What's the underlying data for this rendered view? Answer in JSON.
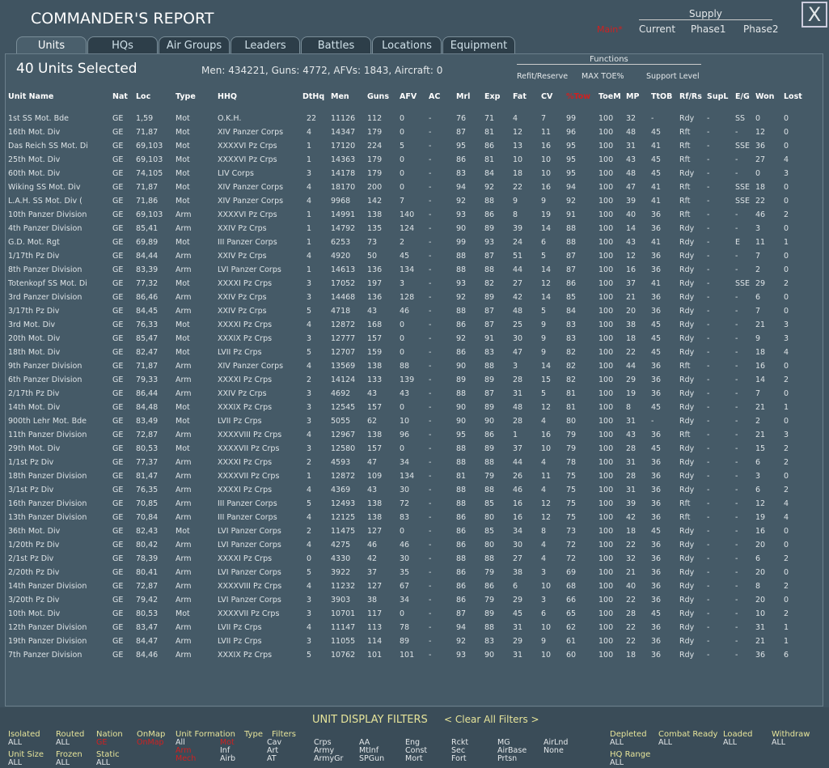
{
  "header": {
    "title": "COMMANDER'S REPORT",
    "close": "X"
  },
  "supply": {
    "label": "Supply",
    "current_mode": "Main*",
    "options": [
      "Current",
      "Phase1",
      "Phase2"
    ]
  },
  "tabs": [
    "Units",
    "HQs",
    "Air Groups",
    "Leaders",
    "Battles",
    "Locations",
    "Equipment"
  ],
  "summary": {
    "selected": "40 Units Selected",
    "totals": "Men: 434221, Guns: 4772, AFVs: 1843, Aircraft: 0"
  },
  "functions": {
    "label": "Functions",
    "items": [
      "Refit/Reserve",
      "MAX TOE%",
      "Support Level"
    ]
  },
  "table": {
    "columns": [
      "Unit Name",
      "Nat",
      "Loc",
      "Type",
      "HHQ",
      "DtHq",
      "Men",
      "Guns",
      "AFV",
      "AC",
      "Mrl",
      "Exp",
      "Fat",
      "CV",
      "%Tow",
      "ToeM",
      "MP",
      "TtOB",
      "Rf/Rs",
      "SupL",
      "E/G",
      "Won",
      "Lost"
    ],
    "rows": [
      [
        "1st SS Mot. Bde",
        "GE",
        "1,59",
        "Mot",
        "O.K.H.",
        "22",
        "11126",
        "112",
        "0",
        "-",
        "76",
        "71",
        "4",
        "7",
        "99",
        "100",
        "32",
        "-",
        "Rdy",
        "-",
        "SS",
        "0",
        "0"
      ],
      [
        "16th Mot. Div",
        "GE",
        "71,87",
        "Mot",
        "XIV Panzer Corps",
        "4",
        "14347",
        "179",
        "0",
        "-",
        "87",
        "81",
        "12",
        "11",
        "96",
        "100",
        "48",
        "45",
        "Rft",
        "-",
        "-",
        "12",
        "0"
      ],
      [
        "Das Reich SS Mot. Di",
        "GE",
        "69,103",
        "Mot",
        "XXXXVI Pz Crps",
        "1",
        "17120",
        "224",
        "5",
        "-",
        "95",
        "86",
        "13",
        "16",
        "95",
        "100",
        "31",
        "41",
        "Rft",
        "-",
        "SSE",
        "36",
        "0"
      ],
      [
        "25th Mot. Div",
        "GE",
        "69,103",
        "Mot",
        "XXXXVI Pz Crps",
        "1",
        "14363",
        "179",
        "0",
        "-",
        "86",
        "81",
        "10",
        "10",
        "95",
        "100",
        "43",
        "45",
        "Rft",
        "-",
        "-",
        "27",
        "4"
      ],
      [
        "60th Mot. Div",
        "GE",
        "74,105",
        "Mot",
        "LIV Corps",
        "3",
        "14178",
        "179",
        "0",
        "-",
        "83",
        "84",
        "18",
        "10",
        "95",
        "100",
        "48",
        "45",
        "Rdy",
        "-",
        "-",
        "0",
        "3"
      ],
      [
        "Wiking SS Mot. Div",
        "GE",
        "71,87",
        "Mot",
        "XIV Panzer Corps",
        "4",
        "18170",
        "200",
        "0",
        "-",
        "94",
        "92",
        "22",
        "16",
        "94",
        "100",
        "47",
        "41",
        "Rft",
        "-",
        "SSE",
        "18",
        "0"
      ],
      [
        "L.A.H. SS Mot. Div (",
        "GE",
        "71,86",
        "Mot",
        "XIV Panzer Corps",
        "4",
        "9968",
        "142",
        "7",
        "-",
        "92",
        "88",
        "9",
        "9",
        "92",
        "100",
        "39",
        "41",
        "Rft",
        "-",
        "SSE",
        "22",
        "0"
      ],
      [
        "10th Panzer Division",
        "GE",
        "69,103",
        "Arm",
        "XXXXVI Pz Crps",
        "1",
        "14991",
        "138",
        "140",
        "-",
        "93",
        "86",
        "8",
        "19",
        "91",
        "100",
        "40",
        "36",
        "Rft",
        "-",
        "-",
        "46",
        "2"
      ],
      [
        "4th Panzer Division",
        "GE",
        "85,41",
        "Arm",
        "XXIV Pz Crps",
        "1",
        "14792",
        "135",
        "124",
        "-",
        "90",
        "89",
        "39",
        "14",
        "88",
        "100",
        "14",
        "36",
        "Rdy",
        "-",
        "-",
        "3",
        "0"
      ],
      [
        "G.D. Mot. Rgt",
        "GE",
        "69,89",
        "Mot",
        "III Panzer Corps",
        "1",
        "6253",
        "73",
        "2",
        "-",
        "99",
        "93",
        "24",
        "6",
        "88",
        "100",
        "43",
        "41",
        "Rdy",
        "-",
        "E",
        "11",
        "1"
      ],
      [
        "1/17th Pz Div",
        "GE",
        "84,44",
        "Arm",
        "XXIV Pz Crps",
        "4",
        "4920",
        "50",
        "45",
        "-",
        "88",
        "87",
        "51",
        "5",
        "87",
        "100",
        "12",
        "36",
        "Rdy",
        "-",
        "-",
        "7",
        "0"
      ],
      [
        "8th Panzer Division",
        "GE",
        "83,39",
        "Arm",
        "LVI Panzer Corps",
        "1",
        "14613",
        "136",
        "134",
        "-",
        "88",
        "88",
        "44",
        "14",
        "87",
        "100",
        "16",
        "36",
        "Rdy",
        "-",
        "-",
        "2",
        "0"
      ],
      [
        "Totenkopf SS Mot. Di",
        "GE",
        "77,32",
        "Mot",
        "XXXXI Pz Crps",
        "3",
        "17052",
        "197",
        "3",
        "-",
        "93",
        "82",
        "27",
        "12",
        "86",
        "100",
        "37",
        "41",
        "Rdy",
        "-",
        "SSE",
        "29",
        "2"
      ],
      [
        "3rd Panzer Division",
        "GE",
        "86,46",
        "Arm",
        "XXIV Pz Crps",
        "3",
        "14468",
        "136",
        "128",
        "-",
        "92",
        "89",
        "42",
        "14",
        "85",
        "100",
        "21",
        "36",
        "Rdy",
        "-",
        "-",
        "6",
        "0"
      ],
      [
        "3/17th Pz Div",
        "GE",
        "84,45",
        "Arm",
        "XXIV Pz Crps",
        "5",
        "4718",
        "43",
        "46",
        "-",
        "88",
        "87",
        "48",
        "5",
        "84",
        "100",
        "20",
        "36",
        "Rdy",
        "-",
        "-",
        "7",
        "0"
      ],
      [
        "3rd Mot. Div",
        "GE",
        "76,33",
        "Mot",
        "XXXXI Pz Crps",
        "4",
        "12872",
        "168",
        "0",
        "-",
        "86",
        "87",
        "25",
        "9",
        "83",
        "100",
        "38",
        "45",
        "Rdy",
        "-",
        "-",
        "21",
        "3"
      ],
      [
        "20th Mot. Div",
        "GE",
        "85,47",
        "Mot",
        "XXXIX Pz Crps",
        "3",
        "12777",
        "157",
        "0",
        "-",
        "92",
        "91",
        "30",
        "9",
        "83",
        "100",
        "18",
        "45",
        "Rdy",
        "-",
        "-",
        "9",
        "3"
      ],
      [
        "18th Mot. Div",
        "GE",
        "82,47",
        "Mot",
        "LVII Pz Crps",
        "5",
        "12707",
        "159",
        "0",
        "-",
        "86",
        "83",
        "47",
        "9",
        "82",
        "100",
        "22",
        "45",
        "Rdy",
        "-",
        "-",
        "18",
        "4"
      ],
      [
        "9th Panzer Division",
        "GE",
        "71,87",
        "Arm",
        "XIV Panzer Corps",
        "4",
        "13569",
        "138",
        "88",
        "-",
        "90",
        "88",
        "3",
        "14",
        "82",
        "100",
        "44",
        "36",
        "Rft",
        "-",
        "-",
        "16",
        "0"
      ],
      [
        "6th Panzer Division",
        "GE",
        "79,33",
        "Arm",
        "XXXXI Pz Crps",
        "2",
        "14124",
        "133",
        "139",
        "-",
        "89",
        "89",
        "28",
        "15",
        "82",
        "100",
        "29",
        "36",
        "Rdy",
        "-",
        "-",
        "14",
        "2"
      ],
      [
        "2/17th Pz Div",
        "GE",
        "86,44",
        "Arm",
        "XXIV Pz Crps",
        "3",
        "4692",
        "43",
        "43",
        "-",
        "88",
        "87",
        "31",
        "5",
        "81",
        "100",
        "19",
        "36",
        "Rdy",
        "-",
        "-",
        "7",
        "0"
      ],
      [
        "14th Mot. Div",
        "GE",
        "84,48",
        "Mot",
        "XXXIX Pz Crps",
        "3",
        "12545",
        "157",
        "0",
        "-",
        "90",
        "89",
        "48",
        "12",
        "81",
        "100",
        "8",
        "45",
        "Rdy",
        "-",
        "-",
        "21",
        "1"
      ],
      [
        "900th Lehr Mot. Bde",
        "GE",
        "83,49",
        "Mot",
        "LVII Pz Crps",
        "3",
        "5055",
        "62",
        "10",
        "-",
        "90",
        "90",
        "28",
        "4",
        "80",
        "100",
        "31",
        "-",
        "Rdy",
        "-",
        "-",
        "2",
        "0"
      ],
      [
        "11th Panzer Division",
        "GE",
        "72,87",
        "Arm",
        "XXXXVIII Pz Crps",
        "4",
        "12967",
        "138",
        "96",
        "-",
        "95",
        "86",
        "1",
        "16",
        "79",
        "100",
        "43",
        "36",
        "Rft",
        "-",
        "-",
        "21",
        "3"
      ],
      [
        "29th Mot. Div",
        "GE",
        "80,53",
        "Mot",
        "XXXXVII Pz Crps",
        "3",
        "12580",
        "157",
        "0",
        "-",
        "88",
        "89",
        "37",
        "10",
        "79",
        "100",
        "28",
        "45",
        "Rdy",
        "-",
        "-",
        "15",
        "2"
      ],
      [
        "1/1st Pz Div",
        "GE",
        "77,37",
        "Arm",
        "XXXXI Pz Crps",
        "2",
        "4593",
        "47",
        "34",
        "-",
        "88",
        "88",
        "44",
        "4",
        "78",
        "100",
        "31",
        "36",
        "Rdy",
        "-",
        "-",
        "6",
        "2"
      ],
      [
        "18th Panzer Division",
        "GE",
        "81,47",
        "Arm",
        "XXXXVII Pz Crps",
        "1",
        "12872",
        "109",
        "134",
        "-",
        "81",
        "79",
        "26",
        "11",
        "75",
        "100",
        "28",
        "36",
        "Rdy",
        "-",
        "-",
        "3",
        "0"
      ],
      [
        "3/1st Pz Div",
        "GE",
        "76,35",
        "Arm",
        "XXXXI Pz Crps",
        "4",
        "4369",
        "43",
        "30",
        "-",
        "88",
        "88",
        "46",
        "4",
        "75",
        "100",
        "31",
        "36",
        "Rdy",
        "-",
        "-",
        "6",
        "2"
      ],
      [
        "16th Panzer Division",
        "GE",
        "70,85",
        "Arm",
        "III Panzer Corps",
        "5",
        "12493",
        "138",
        "72",
        "-",
        "88",
        "85",
        "16",
        "12",
        "75",
        "100",
        "39",
        "36",
        "Rft",
        "-",
        "-",
        "12",
        "4"
      ],
      [
        "13th Panzer Division",
        "GE",
        "70,84",
        "Arm",
        "III Panzer Corps",
        "4",
        "12125",
        "138",
        "83",
        "-",
        "86",
        "80",
        "16",
        "12",
        "75",
        "100",
        "42",
        "36",
        "Rft",
        "-",
        "-",
        "19",
        "4"
      ],
      [
        "36th Mot. Div",
        "GE",
        "82,43",
        "Mot",
        "LVI Panzer Corps",
        "2",
        "11475",
        "127",
        "0",
        "-",
        "86",
        "85",
        "34",
        "8",
        "73",
        "100",
        "18",
        "45",
        "Rdy",
        "-",
        "-",
        "16",
        "0"
      ],
      [
        "1/20th Pz Div",
        "GE",
        "80,42",
        "Arm",
        "LVI Panzer Corps",
        "4",
        "4275",
        "46",
        "46",
        "-",
        "86",
        "80",
        "30",
        "4",
        "72",
        "100",
        "22",
        "36",
        "Rdy",
        "-",
        "-",
        "20",
        "0"
      ],
      [
        "2/1st Pz Div",
        "GE",
        "78,39",
        "Arm",
        "XXXXI Pz Crps",
        "0",
        "4330",
        "42",
        "30",
        "-",
        "88",
        "88",
        "27",
        "4",
        "72",
        "100",
        "32",
        "36",
        "Rdy",
        "-",
        "-",
        "6",
        "2"
      ],
      [
        "2/20th Pz Div",
        "GE",
        "80,41",
        "Arm",
        "LVI Panzer Corps",
        "5",
        "3922",
        "37",
        "35",
        "-",
        "86",
        "79",
        "38",
        "3",
        "69",
        "100",
        "21",
        "36",
        "Rdy",
        "-",
        "-",
        "20",
        "0"
      ],
      [
        "14th Panzer Division",
        "GE",
        "72,87",
        "Arm",
        "XXXXVIII Pz Crps",
        "4",
        "11232",
        "127",
        "67",
        "-",
        "86",
        "86",
        "6",
        "10",
        "68",
        "100",
        "40",
        "36",
        "Rdy",
        "-",
        "-",
        "8",
        "2"
      ],
      [
        "3/20th Pz Div",
        "GE",
        "79,42",
        "Arm",
        "LVI Panzer Corps",
        "3",
        "3903",
        "38",
        "34",
        "-",
        "86",
        "79",
        "29",
        "3",
        "66",
        "100",
        "22",
        "36",
        "Rdy",
        "-",
        "-",
        "20",
        "0"
      ],
      [
        "10th Mot. Div",
        "GE",
        "80,53",
        "Mot",
        "XXXXVII Pz Crps",
        "3",
        "10701",
        "117",
        "0",
        "-",
        "87",
        "89",
        "45",
        "6",
        "65",
        "100",
        "28",
        "45",
        "Rdy",
        "-",
        "-",
        "10",
        "2"
      ],
      [
        "12th Panzer Division",
        "GE",
        "83,47",
        "Arm",
        "LVII Pz Crps",
        "4",
        "11147",
        "113",
        "78",
        "-",
        "94",
        "88",
        "31",
        "10",
        "62",
        "100",
        "22",
        "36",
        "Rdy",
        "-",
        "-",
        "31",
        "1"
      ],
      [
        "19th Panzer Division",
        "GE",
        "84,47",
        "Arm",
        "LVII Pz Crps",
        "3",
        "11055",
        "114",
        "89",
        "-",
        "92",
        "83",
        "29",
        "9",
        "61",
        "100",
        "22",
        "36",
        "Rdy",
        "-",
        "-",
        "21",
        "1"
      ],
      [
        "7th Panzer Division",
        "GE",
        "84,46",
        "Arm",
        "XXXIX Pz Crps",
        "5",
        "10762",
        "101",
        "101",
        "-",
        "93",
        "90",
        "31",
        "10",
        "60",
        "100",
        "18",
        "36",
        "Rdy",
        "-",
        "-",
        "36",
        "6"
      ]
    ]
  },
  "filters": {
    "title": "UNIT DISPLAY FILTERS",
    "clear": "< Clear All Filters >",
    "groups": [
      {
        "label": "Isolated",
        "values": [
          "ALL"
        ]
      },
      {
        "label": "Routed",
        "values": [
          "ALL"
        ]
      },
      {
        "label": "Nation",
        "values": [
          "GE"
        ]
      },
      {
        "label": "OnMap",
        "values": [
          "OnMap"
        ]
      },
      {
        "label": "Unit Size",
        "values": [
          "ALL"
        ]
      },
      {
        "label": "Frozen",
        "values": [
          "ALL"
        ]
      },
      {
        "label": "Static",
        "values": [
          "ALL"
        ]
      },
      {
        "label": "Unit Formation",
        "values": [
          "All",
          "Arm",
          "Mech"
        ]
      },
      {
        "label": "Type",
        "values": [
          "Mot",
          "Inf",
          "Airb"
        ]
      },
      {
        "label": "Filters",
        "values": [
          "Cav",
          "Art",
          "AT"
        ]
      },
      {
        "label": "Depleted",
        "values": [
          "ALL"
        ]
      },
      {
        "label": "Combat Ready",
        "values": [
          "ALL"
        ]
      },
      {
        "label": "Loaded",
        "values": [
          "ALL"
        ]
      },
      {
        "label": "Withdraw",
        "values": [
          "ALL"
        ]
      },
      {
        "label": "HQ Range",
        "values": [
          "ALL"
        ]
      }
    ],
    "options": [
      [
        "Crps",
        "Army",
        "ArmyGr"
      ],
      [
        "AA",
        "MtInf",
        "SPGun"
      ],
      [
        "Eng",
        "Const",
        "Mort"
      ],
      [
        "Rckt",
        "Sec",
        "Fort"
      ],
      [
        "MG",
        "AirBase",
        "Prtsn"
      ],
      [
        "AirLnd",
        "None"
      ]
    ]
  }
}
